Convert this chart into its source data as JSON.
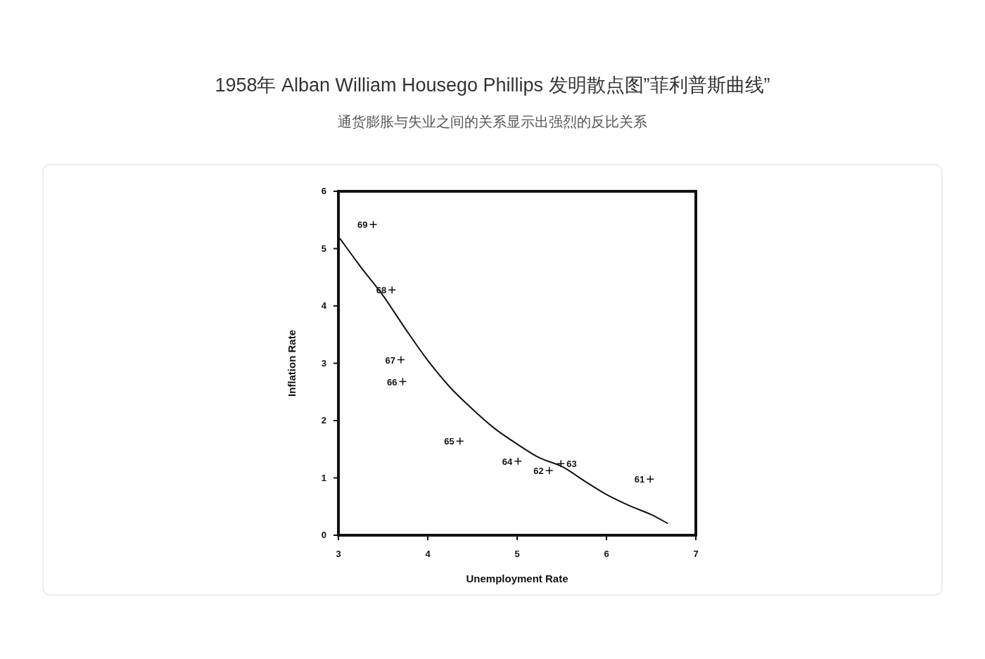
{
  "chart_data": {
    "type": "scatter",
    "title": "1958年 Alban William Housego Phillips 发明散点图”菲利普斯曲线”",
    "subtitle": "通货膨胀与失业之间的关系显示出强烈的反比关系",
    "xlabel": "Unemployment Rate",
    "ylabel": "Inflation Rate",
    "xlim": [
      3,
      7
    ],
    "ylim": [
      0,
      6
    ],
    "xticks": [
      3,
      4,
      5,
      6,
      7
    ],
    "yticks": [
      0,
      1,
      2,
      3,
      4,
      5,
      6
    ],
    "series": [
      {
        "type": "scatter",
        "marker": "cross",
        "color": "#111111",
        "x": [
          3.39,
          3.6,
          3.7,
          3.72,
          4.36,
          5.01,
          5.36,
          5.49,
          6.49
        ],
        "values": [
          5.42,
          4.28,
          3.06,
          2.68,
          1.64,
          1.29,
          1.13,
          1.25,
          0.98
        ]
      },
      {
        "type": "line",
        "marker": "none",
        "line_style": "solid",
        "color": "#111111",
        "x": [
          3.02,
          3.25,
          3.5,
          3.75,
          4.0,
          4.25,
          4.5,
          4.75,
          5.0,
          5.25,
          5.5,
          5.75,
          6.0,
          6.25,
          6.5,
          6.68
        ],
        "values": [
          5.17,
          4.68,
          4.18,
          3.6,
          3.05,
          2.58,
          2.2,
          1.86,
          1.59,
          1.35,
          1.2,
          0.95,
          0.71,
          0.52,
          0.36,
          0.21
        ]
      }
    ],
    "annotations": [
      {
        "text": "69",
        "x": 3.39,
        "y": 5.42
      },
      {
        "text": "68",
        "x": 3.6,
        "y": 4.28
      },
      {
        "text": "67",
        "x": 3.7,
        "y": 3.06
      },
      {
        "text": "66",
        "x": 3.72,
        "y": 2.68
      },
      {
        "text": "65",
        "x": 4.36,
        "y": 1.64
      },
      {
        "text": "64",
        "x": 5.01,
        "y": 1.29
      },
      {
        "text": "62",
        "x": 5.36,
        "y": 1.13
      },
      {
        "text": "63",
        "x": 5.49,
        "y": 1.25
      },
      {
        "text": "61",
        "x": 6.49,
        "y": 0.98
      }
    ]
  }
}
